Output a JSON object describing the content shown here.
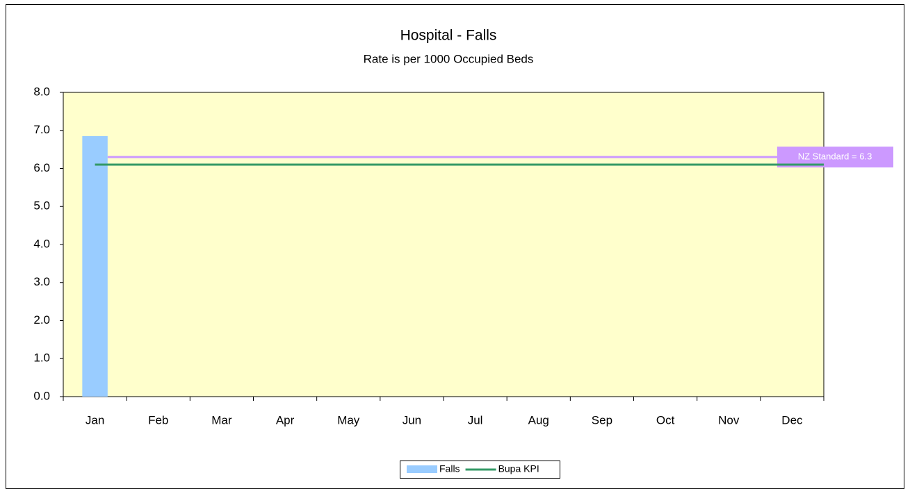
{
  "chart_data": {
    "type": "bar",
    "title": "Hospital - Falls",
    "subtitle": "Rate is per 1000 Occupied Beds",
    "categories": [
      "Jan",
      "Feb",
      "Mar",
      "Apr",
      "May",
      "Jun",
      "Jul",
      "Aug",
      "Sep",
      "Oct",
      "Nov",
      "Dec"
    ],
    "series": [
      {
        "name": "Falls",
        "type": "bar",
        "color": "#99ccff",
        "values": [
          6.85,
          null,
          null,
          null,
          null,
          null,
          null,
          null,
          null,
          null,
          null,
          null
        ]
      },
      {
        "name": "Bupa KPI",
        "type": "line",
        "color": "#339966",
        "values": [
          6.1,
          6.1,
          6.1,
          6.1,
          6.1,
          6.1,
          6.1,
          6.1,
          6.1,
          6.1,
          6.1,
          6.1
        ]
      }
    ],
    "reference_lines": [
      {
        "label": "NZ Standard = 6.3",
        "value": 6.3,
        "color": "#cc99ff"
      }
    ],
    "ylim": [
      0,
      8
    ],
    "yticks": [
      {
        "value": 0,
        "label": "0.0"
      },
      {
        "value": 1,
        "label": "1.0"
      },
      {
        "value": 2,
        "label": "2.0"
      },
      {
        "value": 3,
        "label": "3.0"
      },
      {
        "value": 4,
        "label": "4.0"
      },
      {
        "value": 5,
        "label": "5.0"
      },
      {
        "value": 6,
        "label": "6.0"
      },
      {
        "value": 7,
        "label": "7.0"
      },
      {
        "value": 8,
        "label": "8.0"
      }
    ],
    "plot_background": "#ffffcc",
    "legend": "bottom"
  }
}
